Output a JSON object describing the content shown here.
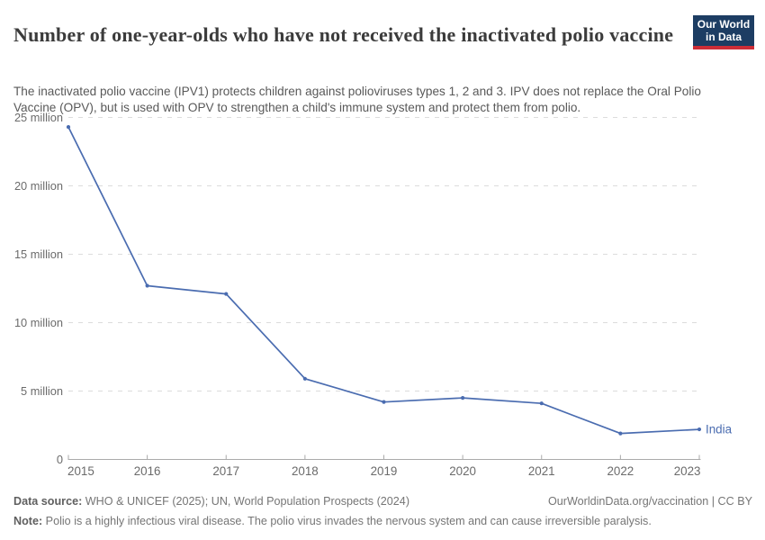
{
  "header": {
    "title": "Number of one-year-olds who have not received the inactivated polio vaccine",
    "subtitle": "The inactivated polio vaccine (IPV1) protects children against polioviruses types 1, 2 and 3. IPV does not replace the Oral Polio Vaccine (OPV), but is used with OPV to strengthen a child's immune system and protect them from polio.",
    "logo": {
      "line1": "Our World",
      "line2": "in Data",
      "bg_color": "#1d3d63",
      "accent_color": "#cd2d37"
    }
  },
  "chart_data": {
    "type": "line",
    "title": "Number of one-year-olds who have not received the inactivated polio vaccine",
    "x": [
      2015,
      2016,
      2017,
      2018,
      2019,
      2020,
      2021,
      2022,
      2023
    ],
    "series": [
      {
        "name": "India",
        "values": [
          24.3,
          12.7,
          12.1,
          5.9,
          4.2,
          4.5,
          4.1,
          1.9,
          2.2
        ],
        "color": "#4a6cb0"
      }
    ],
    "unit": "million",
    "xlabel": "",
    "ylabel": "",
    "ylim": [
      0,
      25
    ],
    "y_ticks": [
      0,
      5,
      10,
      15,
      20,
      25
    ],
    "y_tick_labels": [
      "0",
      "5 million",
      "10 million",
      "15 million",
      "20 million",
      "25 million"
    ],
    "grid": "horizontal-dashed",
    "legend_position": "end-of-line",
    "colors": {
      "gridline": "#dcdcdc",
      "axis": "#aaaaaa",
      "tick_text": "#6b6b6b"
    }
  },
  "footer": {
    "data_source_label": "Data source:",
    "data_source_text": " WHO & UNICEF (2025); UN, World Population Prospects (2024)",
    "link": "OurWorldinData.org/vaccination | CC BY",
    "note_label": "Note:",
    "note_text": " Polio is a highly infectious viral disease. The polio virus invades the nervous system and can cause irreversible paralysis."
  }
}
